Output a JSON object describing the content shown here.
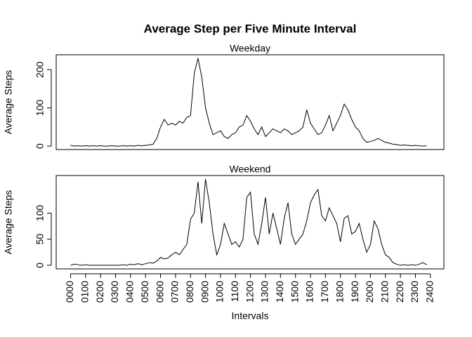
{
  "title": "Average Step per Five Minute Interval",
  "x_label": "Intervals",
  "chart_data": [
    {
      "type": "line",
      "title": "Weekday",
      "y_label": "Average Steps",
      "color": "#000000",
      "x": [
        0,
        0.25,
        0.5,
        0.75,
        1,
        1.25,
        1.5,
        1.75,
        2,
        2.25,
        2.5,
        2.75,
        3,
        3.25,
        3.5,
        3.75,
        4,
        4.25,
        4.5,
        4.75,
        5,
        5.25,
        5.5,
        5.75,
        6,
        6.25,
        6.5,
        6.75,
        7,
        7.25,
        7.5,
        7.75,
        8,
        8.25,
        8.5,
        8.75,
        9,
        9.25,
        9.5,
        9.75,
        10,
        10.25,
        10.5,
        10.75,
        11,
        11.25,
        11.5,
        11.75,
        12,
        12.25,
        12.5,
        12.75,
        13,
        13.25,
        13.5,
        13.75,
        14,
        14.25,
        14.5,
        14.75,
        15,
        15.25,
        15.5,
        15.75,
        16,
        16.25,
        16.5,
        16.75,
        17,
        17.25,
        17.5,
        17.75,
        18,
        18.25,
        18.5,
        18.75,
        19,
        19.25,
        19.5,
        19.75,
        20,
        20.25,
        20.5,
        20.75,
        21,
        21.25,
        21.5,
        21.75,
        22,
        22.25,
        22.5,
        22.75,
        23,
        23.25,
        23.5,
        23.75
      ],
      "values": [
        2,
        0,
        1,
        0,
        1,
        0,
        1,
        0,
        1,
        0,
        0,
        1,
        0,
        0,
        1,
        0,
        1,
        0,
        2,
        1,
        2,
        3,
        5,
        20,
        50,
        70,
        55,
        60,
        55,
        65,
        60,
        75,
        80,
        190,
        230,
        180,
        100,
        60,
        30,
        35,
        40,
        25,
        20,
        30,
        35,
        50,
        55,
        80,
        65,
        45,
        30,
        50,
        25,
        35,
        45,
        40,
        35,
        45,
        40,
        30,
        35,
        40,
        50,
        95,
        60,
        45,
        30,
        35,
        55,
        80,
        40,
        60,
        80,
        110,
        95,
        70,
        50,
        40,
        20,
        10,
        12,
        15,
        20,
        15,
        10,
        8,
        5,
        4,
        2,
        3,
        2,
        1,
        2,
        1,
        0,
        1
      ],
      "xlim": [
        -0.96,
        24.9
      ],
      "ylim": [
        -9,
        239
      ],
      "yticks": [
        0,
        100,
        200
      ]
    },
    {
      "type": "line",
      "title": "Weekend",
      "y_label": "Average Steps",
      "color": "#000000",
      "x": [
        0,
        0.25,
        0.5,
        0.75,
        1,
        1.25,
        1.5,
        1.75,
        2,
        2.25,
        2.5,
        2.75,
        3,
        3.25,
        3.5,
        3.75,
        4,
        4.25,
        4.5,
        4.75,
        5,
        5.25,
        5.5,
        5.75,
        6,
        6.25,
        6.5,
        6.75,
        7,
        7.25,
        7.5,
        7.75,
        8,
        8.25,
        8.5,
        8.75,
        9,
        9.25,
        9.5,
        9.75,
        10,
        10.25,
        10.5,
        10.75,
        11,
        11.25,
        11.5,
        11.75,
        12,
        12.25,
        12.5,
        12.75,
        13,
        13.25,
        13.5,
        13.75,
        14,
        14.25,
        14.5,
        14.75,
        15,
        15.25,
        15.5,
        15.75,
        16,
        16.25,
        16.5,
        16.75,
        17,
        17.25,
        17.5,
        17.75,
        18,
        18.25,
        18.5,
        18.75,
        19,
        19.25,
        19.5,
        19.75,
        20,
        20.25,
        20.5,
        20.75,
        21,
        21.25,
        21.5,
        21.75,
        22,
        22.25,
        22.5,
        22.75,
        23,
        23.25,
        23.5,
        23.75
      ],
      "values": [
        0,
        2,
        1,
        0,
        1,
        0,
        0,
        0,
        0,
        0,
        0,
        0,
        0,
        0,
        1,
        0,
        2,
        1,
        3,
        1,
        3,
        5,
        4,
        8,
        15,
        12,
        14,
        20,
        25,
        20,
        30,
        40,
        88,
        100,
        160,
        80,
        165,
        120,
        60,
        20,
        40,
        80,
        60,
        40,
        45,
        35,
        50,
        130,
        140,
        60,
        40,
        80,
        130,
        60,
        100,
        70,
        40,
        90,
        120,
        60,
        40,
        50,
        60,
        85,
        120,
        135,
        145,
        95,
        85,
        110,
        95,
        80,
        45,
        90,
        95,
        60,
        65,
        80,
        50,
        25,
        40,
        85,
        70,
        40,
        20,
        15,
        5,
        2,
        0,
        1,
        0,
        1,
        0,
        2,
        5,
        1
      ],
      "xlim": [
        -0.96,
        24.9
      ],
      "ylim": [
        -7,
        172
      ],
      "yticks": [
        0,
        50,
        100
      ],
      "xticks": [
        {
          "value": 0,
          "label": "0000"
        },
        {
          "value": 1,
          "label": "0100"
        },
        {
          "value": 2,
          "label": "0200"
        },
        {
          "value": 3,
          "label": "0300"
        },
        {
          "value": 4,
          "label": "0400"
        },
        {
          "value": 5,
          "label": "0500"
        },
        {
          "value": 6,
          "label": "0600"
        },
        {
          "value": 7,
          "label": "0700"
        },
        {
          "value": 8,
          "label": "0800"
        },
        {
          "value": 9,
          "label": "0900"
        },
        {
          "value": 10,
          "label": "1000"
        },
        {
          "value": 11,
          "label": "1100"
        },
        {
          "value": 12,
          "label": "1200"
        },
        {
          "value": 13,
          "label": "1300"
        },
        {
          "value": 14,
          "label": "1400"
        },
        {
          "value": 15,
          "label": "1500"
        },
        {
          "value": 16,
          "label": "1600"
        },
        {
          "value": 17,
          "label": "1700"
        },
        {
          "value": 18,
          "label": "1800"
        },
        {
          "value": 19,
          "label": "1900"
        },
        {
          "value": 20,
          "label": "2000"
        },
        {
          "value": 21,
          "label": "2100"
        },
        {
          "value": 22,
          "label": "2200"
        },
        {
          "value": 23,
          "label": "2300"
        },
        {
          "value": 24,
          "label": "2400"
        }
      ]
    }
  ]
}
